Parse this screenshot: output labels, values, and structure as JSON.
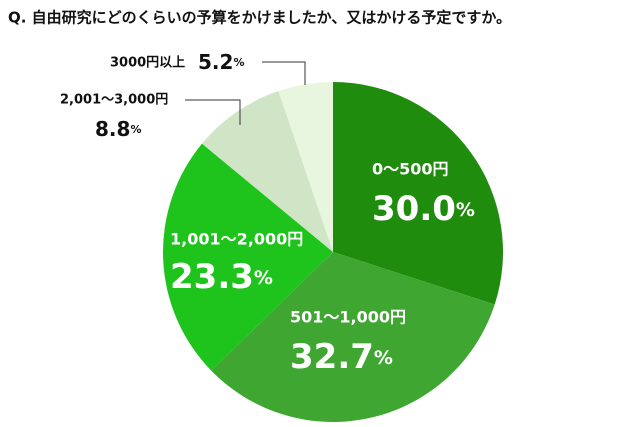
{
  "chart_data": {
    "type": "pie",
    "title": "Q. 自由研究にどのくらいの予算をかけましたか、又はかける予定ですか。",
    "categories": [
      "0～500円",
      "501～1,000円",
      "1,001～2,000円",
      "2,001～3,000円",
      "3000円以上"
    ],
    "values": [
      30.0,
      32.7,
      23.3,
      8.8,
      5.2
    ],
    "value_labels": [
      "30.0%",
      "32.7%",
      "23.3%",
      "8.8%",
      "5.2%"
    ],
    "colors": [
      "#1f8c0e",
      "#3fa632",
      "#1ec31b",
      "#cfe5c6",
      "#e8f6df"
    ]
  }
}
